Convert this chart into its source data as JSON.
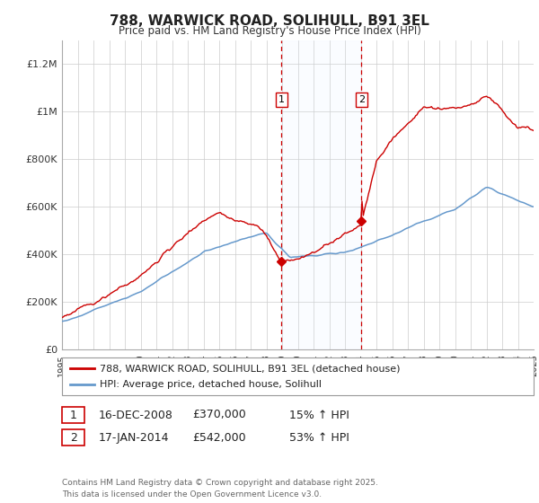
{
  "title": "788, WARWICK ROAD, SOLIHULL, B91 3EL",
  "subtitle": "Price paid vs. HM Land Registry's House Price Index (HPI)",
  "background_color": "#ffffff",
  "grid_color": "#cccccc",
  "red_line_color": "#cc0000",
  "blue_line_color": "#6699cc",
  "shade_color": "#ddeeff",
  "dashed_color": "#cc0000",
  "marker1_price": 370000,
  "marker2_price": 542000,
  "marker1_date_str": "16-DEC-2008",
  "marker2_date_str": "17-JAN-2014",
  "marker1_hpi_pct": "15%",
  "marker2_hpi_pct": "53%",
  "legend_line1": "788, WARWICK ROAD, SOLIHULL, B91 3EL (detached house)",
  "legend_line2": "HPI: Average price, detached house, Solihull",
  "footer": "Contains HM Land Registry data © Crown copyright and database right 2025.\nThis data is licensed under the Open Government Licence v3.0.",
  "ylim": [
    0,
    1300000
  ],
  "yticks": [
    0,
    200000,
    400000,
    600000,
    800000,
    1000000,
    1200000
  ],
  "ytick_labels": [
    "£0",
    "£200K",
    "£400K",
    "£600K",
    "£800K",
    "£1M",
    "£1.2M"
  ],
  "start_year": 1995,
  "end_year": 2025,
  "date_m1": 2008.958,
  "date_m2": 2014.042
}
